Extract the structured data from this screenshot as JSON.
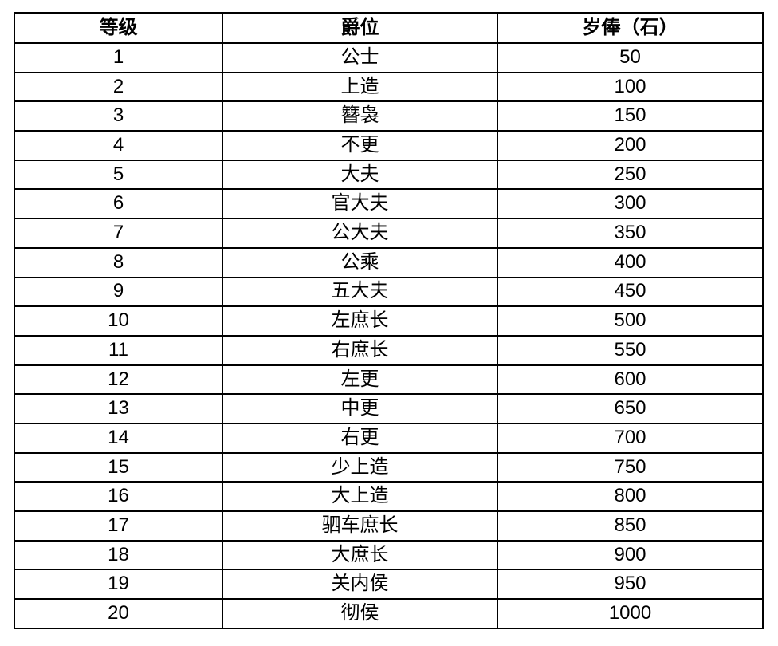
{
  "table": {
    "columns": [
      "等级",
      "爵位",
      "岁俸（石）"
    ],
    "rows": [
      {
        "rank": "1",
        "title": "公士",
        "salary": "50"
      },
      {
        "rank": "2",
        "title": "上造",
        "salary": "100"
      },
      {
        "rank": "3",
        "title": "簪袅",
        "salary": "150"
      },
      {
        "rank": "4",
        "title": "不更",
        "salary": "200"
      },
      {
        "rank": "5",
        "title": "大夫",
        "salary": "250"
      },
      {
        "rank": "6",
        "title": "官大夫",
        "salary": "300"
      },
      {
        "rank": "7",
        "title": "公大夫",
        "salary": "350"
      },
      {
        "rank": "8",
        "title": "公乘",
        "salary": "400"
      },
      {
        "rank": "9",
        "title": "五大夫",
        "salary": "450"
      },
      {
        "rank": "10",
        "title": "左庶长",
        "salary": "500"
      },
      {
        "rank": "11",
        "title": "右庶长",
        "salary": "550"
      },
      {
        "rank": "12",
        "title": "左更",
        "salary": "600"
      },
      {
        "rank": "13",
        "title": "中更",
        "salary": "650"
      },
      {
        "rank": "14",
        "title": "右更",
        "salary": "700"
      },
      {
        "rank": "15",
        "title": "少上造",
        "salary": "750"
      },
      {
        "rank": "16",
        "title": "大上造",
        "salary": "800"
      },
      {
        "rank": "17",
        "title": "驷车庶长",
        "salary": "850"
      },
      {
        "rank": "18",
        "title": "大庶长",
        "salary": "900"
      },
      {
        "rank": "19",
        "title": "关内侯",
        "salary": "950"
      },
      {
        "rank": "20",
        "title": "彻侯",
        "salary": "1000"
      }
    ]
  }
}
